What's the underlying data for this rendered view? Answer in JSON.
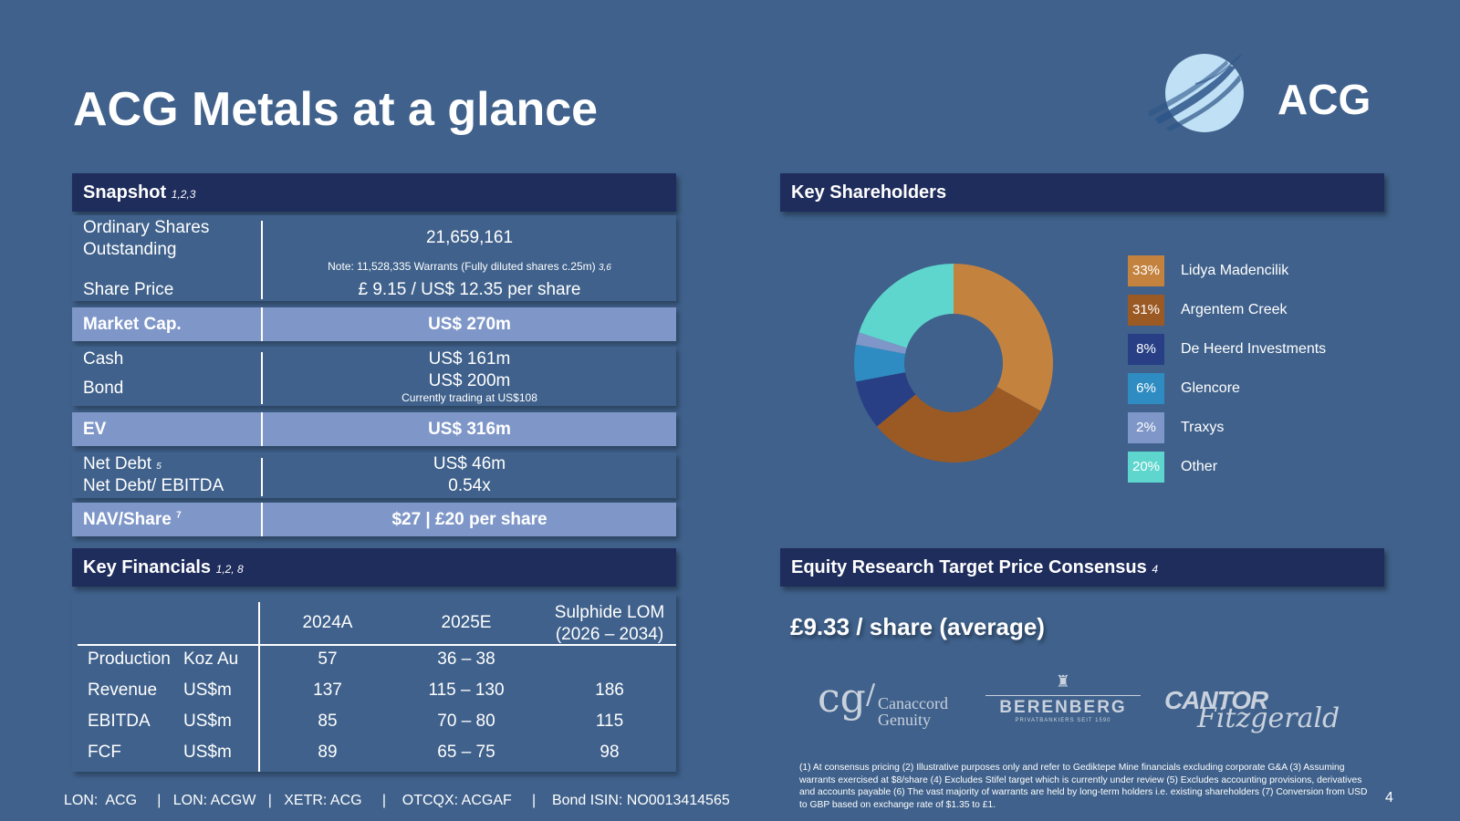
{
  "title": "ACG Metals at a glance",
  "logo": {
    "text": "ACG",
    "icon": "acg-globe-logo"
  },
  "snapshot": {
    "header": "Snapshot",
    "header_sup": "1,2,3",
    "shares_label": "Ordinary Shares Outstanding",
    "shares_value": "21,659,161",
    "shares_note": "Note: 11,528,335 Warrants (Fully diluted shares c.25m)",
    "shares_note_sup": "3,6",
    "price_label": "Share Price",
    "price_value": "£ 9.15 / US$ 12.35 per share",
    "mcap_label": "Market Cap.",
    "mcap_value": "US$ 270m",
    "cash_label": "Cash",
    "cash_value": "US$ 161m",
    "bond_label": "Bond",
    "bond_value": "US$ 200m",
    "bond_note": "Currently trading at US$108",
    "ev_label": "EV",
    "ev_value": "US$ 316m",
    "netdebt_label": "Net Debt",
    "netdebt_sup": "5",
    "netdebt_value": "US$ 46m",
    "nde_label": "Net Debt/ EBITDA",
    "nde_value": "0.54x",
    "nav_label": "NAV/Share",
    "nav_sup": "7",
    "nav_value": "$27 | £20 per share"
  },
  "financials": {
    "header": "Key Financials",
    "header_sup": "1,2, 8",
    "col_2024": "2024A",
    "col_2025": "2025E",
    "col_lom_1": "Sulphide LOM",
    "col_lom_2": "(2026 – 2034)",
    "rows": [
      {
        "metric": "Production",
        "unit": "Koz Au",
        "a2024": "57",
        "e2025": "36 – 38",
        "lom": ""
      },
      {
        "metric": "Revenue",
        "unit": "US$m",
        "a2024": "137",
        "e2025": "115 – 130",
        "lom": "186"
      },
      {
        "metric": "EBITDA",
        "unit": "US$m",
        "a2024": "85",
        "e2025": "70 – 80",
        "lom": "115"
      },
      {
        "metric": "FCF",
        "unit": "US$m",
        "a2024": "89",
        "e2025": "65 – 75",
        "lom": "98"
      }
    ]
  },
  "shareholders": {
    "header": "Key Shareholders"
  },
  "chart_data": {
    "type": "pie",
    "donut": true,
    "title": "",
    "categories": [
      "Lidya Madencilik",
      "Argentem Creek",
      "De Heerd Investments",
      "Glencore",
      "Traxys",
      "Other"
    ],
    "values": [
      33,
      31,
      8,
      6,
      2,
      20
    ],
    "labels": [
      "33%",
      "31%",
      "8%",
      "6%",
      "2%",
      "20%"
    ],
    "colors": [
      "#c4823f",
      "#9b5a24",
      "#283f86",
      "#2f8cc2",
      "#7f97c8",
      "#5ed6ce"
    ],
    "legend": "right"
  },
  "consensus": {
    "header": "Equity Research Target Price Consensus",
    "header_sup": "4",
    "value": "£9.33 / share (average)"
  },
  "brokers": {
    "canaccord_mark": "cg",
    "canaccord_1": "Canaccord",
    "canaccord_2": "Genuity",
    "berenberg": "BERENBERG",
    "berenberg_sub": "PRIVATBANKIERS SEIT 1590",
    "cantor_1": "CANTOR",
    "cantor_2": "Fitzgerald"
  },
  "footnote": "(1) At consensus pricing (2) Illustrative purposes only and refer to Gediktepe Mine financials excluding corporate G&A (3) Assuming warrants exercised at $8/share (4) Excludes Stifel target which is currently under review  (5) Excludes accounting provisions, derivatives and accounts payable (6) The vast majority of warrants are held by long-term holders i.e. existing shareholders (7) Conversion from USD to GBP based on exchange rate of $1.35 to £1.",
  "tickers": "LON:  ACG     |   LON: ACGW   |   XETR: ACG     |    OTCQX: ACGAF     |    Bond ISIN: NO0013414565",
  "page_number": "4"
}
